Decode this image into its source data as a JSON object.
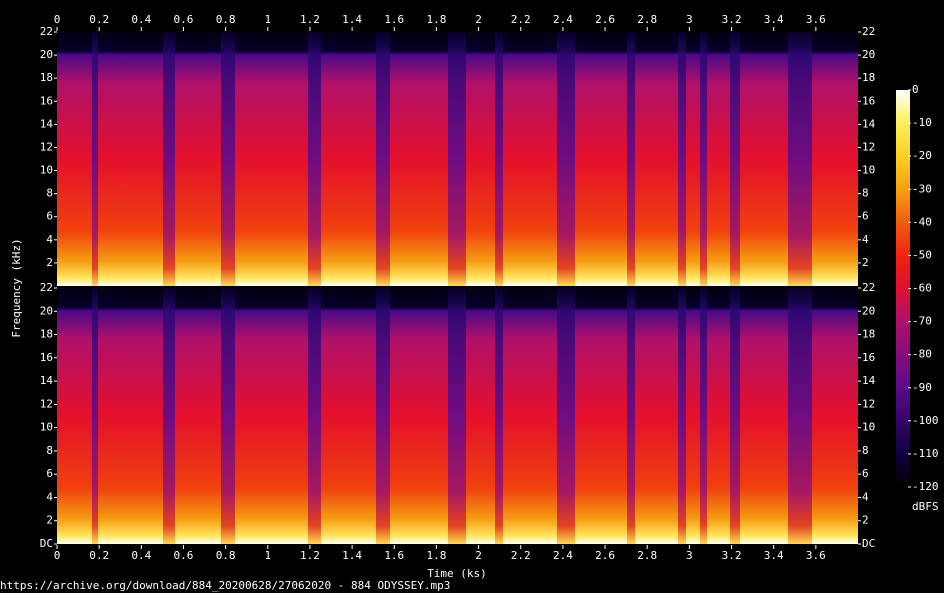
{
  "chart_data": {
    "type": "spectrogram",
    "xlabel": "Time (ks)",
    "ylabel": "Frequency (kHz)",
    "xlim": [
      0,
      3.8
    ],
    "xticks": [
      0,
      0.2,
      0.4,
      0.6,
      0.8,
      1,
      1.2,
      1.4,
      1.6,
      1.8,
      2,
      2.2,
      2.4,
      2.6,
      2.8,
      3,
      3.2,
      3.4,
      3.6
    ],
    "channels": [
      {
        "ylim": [
          0,
          22
        ],
        "yticks": [
          2,
          4,
          6,
          8,
          10,
          12,
          14,
          16,
          18,
          20,
          22
        ]
      },
      {
        "ylim": [
          0,
          22
        ],
        "yticks": [
          {
            "value": 0,
            "label": "DC"
          },
          2,
          4,
          6,
          8,
          10,
          12,
          14,
          16,
          18,
          20,
          22
        ]
      }
    ],
    "colorbar": {
      "label": "dBFS",
      "lim": [
        -120,
        0
      ],
      "ticks": [
        -120,
        -110,
        -100,
        -90,
        -80,
        -70,
        -60,
        -50,
        -40,
        -30,
        -20,
        -10,
        0
      ]
    },
    "caption": "https://archive.org/download/884_20200628/27062020 - 884 ODYSSEY.mp3"
  }
}
